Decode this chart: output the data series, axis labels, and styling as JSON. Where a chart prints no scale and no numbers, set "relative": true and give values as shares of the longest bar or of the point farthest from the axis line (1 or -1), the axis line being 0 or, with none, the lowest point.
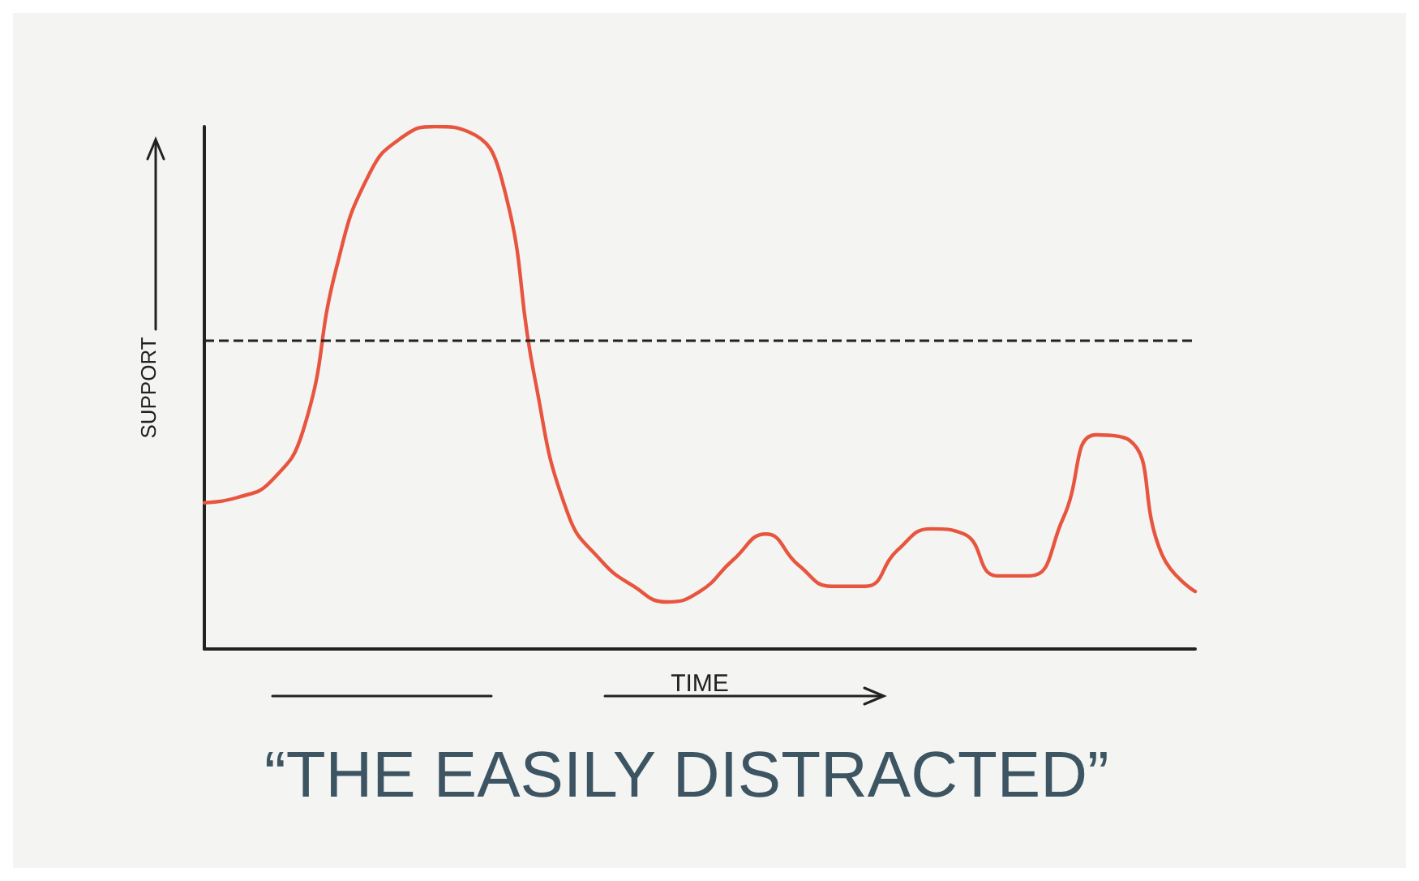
{
  "chart_data": {
    "type": "line",
    "title": "“THE EASILY DISTRACTED”",
    "xlabel": "TIME",
    "ylabel": "SUPPORT",
    "relative": true,
    "categories": [
      null,
      null,
      null,
      null,
      null,
      null,
      null,
      null,
      null,
      null,
      null,
      null,
      null,
      null,
      null,
      null,
      null,
      null,
      null,
      null,
      null,
      null,
      null,
      null,
      null,
      null,
      null,
      null,
      null,
      null,
      null
    ],
    "series": [
      {
        "color": "#e8553f",
        "values": [
          0.28,
          0.29,
          0.32,
          0.42,
          0.73,
          0.91,
          0.98,
          1.0,
          0.99,
          0.9,
          0.52,
          0.26,
          0.17,
          0.12,
          0.09,
          0.11,
          0.17,
          0.22,
          0.16,
          0.12,
          0.12,
          0.19,
          0.23,
          0.22,
          0.14,
          0.14,
          0.25,
          0.41,
          0.4,
          0.18,
          0.11
        ]
      }
    ],
    "ref_lines": [
      {
        "axis": "y",
        "value": 0.59,
        "color": "#222222",
        "line_style": "dashed"
      }
    ],
    "grid": false,
    "marker": "none",
    "line_style": "solid"
  }
}
